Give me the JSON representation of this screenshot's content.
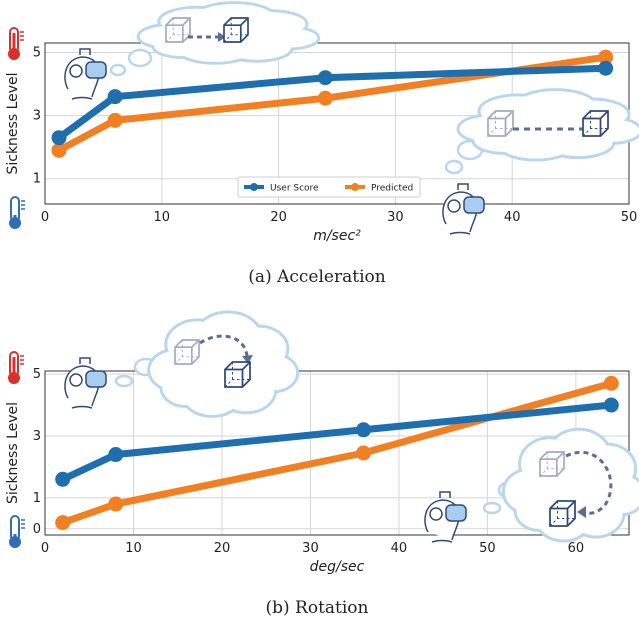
{
  "colors": {
    "user": "#1f6faf",
    "predicted": "#f28022",
    "cloud_fill": "#ffffff",
    "cloud_stroke": "#b8d6ef",
    "visor": "#a9cdef",
    "cube": "#2f4a7a",
    "thermo_hot": "#d9302b",
    "thermo_cold": "#2e6fb3"
  },
  "icons": [
    "thermometer-hot-icon",
    "thermometer-cold-icon",
    "vr-headset-user-icon",
    "thought-cloud-icon",
    "cube-translate-icon",
    "cube-rotate-icon"
  ],
  "chart_data": [
    {
      "type": "line",
      "caption": "(a) Acceleration",
      "xlabel": "m/sec²",
      "ylabel": "Sickness Level",
      "xlim": [
        0,
        50
      ],
      "ylim": [
        0.2,
        5.3
      ],
      "xticks": [
        "0",
        "10",
        "20",
        "30",
        "40",
        "50"
      ],
      "yticks": [
        "1",
        "3",
        "5"
      ],
      "grid": true,
      "legend_placement": "bottom-center",
      "legend": [
        "User Score",
        "Predicted"
      ],
      "series": [
        {
          "name": "User Score",
          "x": [
            1.2,
            6,
            24,
            48
          ],
          "values": [
            2.3,
            3.6,
            4.2,
            4.5
          ]
        },
        {
          "name": "Predicted",
          "x": [
            1.2,
            6,
            24,
            48
          ],
          "values": [
            1.9,
            2.85,
            3.55,
            4.85
          ]
        }
      ]
    },
    {
      "type": "line",
      "caption": "(b) Rotation",
      "xlabel": "deg/sec",
      "ylabel": "Sickness Level",
      "xlim": [
        0,
        66
      ],
      "ylim": [
        -0.2,
        5.1
      ],
      "xticks": [
        "0",
        "10",
        "20",
        "30",
        "40",
        "50",
        "60"
      ],
      "yticks": [
        "0",
        "1",
        "3",
        "5"
      ],
      "grid": true,
      "series": [
        {
          "name": "User Score",
          "x": [
            2,
            8,
            36,
            64
          ],
          "values": [
            1.6,
            2.4,
            3.2,
            4.0
          ]
        },
        {
          "name": "Predicted",
          "x": [
            2,
            8,
            36,
            64
          ],
          "values": [
            0.2,
            0.8,
            2.45,
            4.7
          ]
        }
      ]
    }
  ]
}
